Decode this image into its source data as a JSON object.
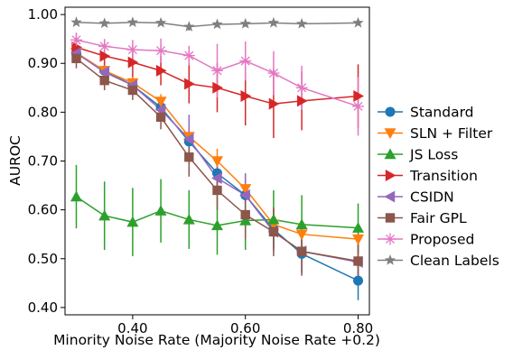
{
  "chart_data": {
    "type": "line",
    "xlabel": "Minority Noise Rate (Majority Noise Rate +0.2)",
    "ylabel": "AUROC",
    "xlim": [
      0.28,
      0.82
    ],
    "ylim": [
      0.385,
      1.015
    ],
    "xticks": [
      0.4,
      0.6,
      0.8
    ],
    "xtick_labels": [
      "0.40",
      "0.60",
      "0.80"
    ],
    "yticks": [
      0.4,
      0.5,
      0.6,
      0.7,
      0.8,
      0.9,
      1.0
    ],
    "ytick_labels": [
      "0.40",
      "0.50",
      "0.60",
      "0.70",
      "0.80",
      "0.90",
      "1.00"
    ],
    "grid": false,
    "legend_position": "center-right, outside plot",
    "x": [
      0.3,
      0.35,
      0.4,
      0.45,
      0.5,
      0.55,
      0.6,
      0.65,
      0.7,
      0.8
    ],
    "series": [
      {
        "name": "Standard",
        "color": "#1f77b4",
        "marker": "circle",
        "values": [
          0.92,
          0.885,
          0.855,
          0.81,
          0.74,
          0.675,
          0.63,
          0.56,
          0.51,
          0.455
        ],
        "errors": [
          0.015,
          0.015,
          0.015,
          0.02,
          0.025,
          0.03,
          0.035,
          0.04,
          0.04,
          0.04
        ]
      },
      {
        "name": "SLN + Filter",
        "color": "#ff7f0e",
        "marker": "triangle-down",
        "values": [
          0.922,
          0.885,
          0.86,
          0.822,
          0.75,
          0.7,
          0.643,
          0.57,
          0.55,
          0.54
        ],
        "errors": [
          0.012,
          0.012,
          0.012,
          0.015,
          0.02,
          0.025,
          0.03,
          0.035,
          0.03,
          0.03
        ]
      },
      {
        "name": "JS Loss",
        "color": "#2ca02c",
        "marker": "triangle-up",
        "values": [
          0.627,
          0.588,
          0.575,
          0.598,
          0.58,
          0.568,
          0.578,
          0.58,
          0.57,
          0.563
        ],
        "errors": [
          0.065,
          0.07,
          0.07,
          0.065,
          0.06,
          0.06,
          0.06,
          0.06,
          0.06,
          0.05
        ]
      },
      {
        "name": "Transition",
        "color": "#d62728",
        "marker": "triangle-right",
        "values": [
          0.933,
          0.915,
          0.902,
          0.885,
          0.858,
          0.85,
          0.833,
          0.817,
          0.823,
          0.833
        ],
        "errors": [
          0.02,
          0.025,
          0.03,
          0.03,
          0.04,
          0.05,
          0.06,
          0.07,
          0.06,
          0.065
        ]
      },
      {
        "name": "CSIDN",
        "color": "#9467bd",
        "marker": "triangle-left",
        "values": [
          0.921,
          0.882,
          0.855,
          0.805,
          0.745,
          0.665,
          0.63,
          0.555,
          0.515,
          0.493
        ],
        "errors": [
          0.015,
          0.015,
          0.015,
          0.02,
          0.05,
          0.035,
          0.045,
          0.04,
          0.04,
          0.04
        ]
      },
      {
        "name": "Fair GPL",
        "color": "#8c564b",
        "marker": "square",
        "values": [
          0.91,
          0.865,
          0.845,
          0.79,
          0.708,
          0.64,
          0.59,
          0.555,
          0.515,
          0.495
        ],
        "errors": [
          0.02,
          0.02,
          0.02,
          0.025,
          0.04,
          0.04,
          0.05,
          0.05,
          0.05,
          0.04
        ]
      },
      {
        "name": "Proposed",
        "color": "#e377c2",
        "marker": "x-star",
        "values": [
          0.948,
          0.935,
          0.928,
          0.926,
          0.916,
          0.885,
          0.905,
          0.88,
          0.85,
          0.812
        ],
        "errors": [
          0.015,
          0.015,
          0.02,
          0.025,
          0.02,
          0.055,
          0.04,
          0.045,
          0.045,
          0.06
        ]
      },
      {
        "name": "Clean Labels",
        "color": "#7f7f7f",
        "marker": "star",
        "values": [
          0.984,
          0.982,
          0.984,
          0.983,
          0.975,
          0.98,
          0.981,
          0.983,
          0.981,
          0.983
        ],
        "errors": [
          0.005,
          0.005,
          0.005,
          0.005,
          0.008,
          0.006,
          0.006,
          0.005,
          0.005,
          0.005
        ]
      }
    ]
  }
}
